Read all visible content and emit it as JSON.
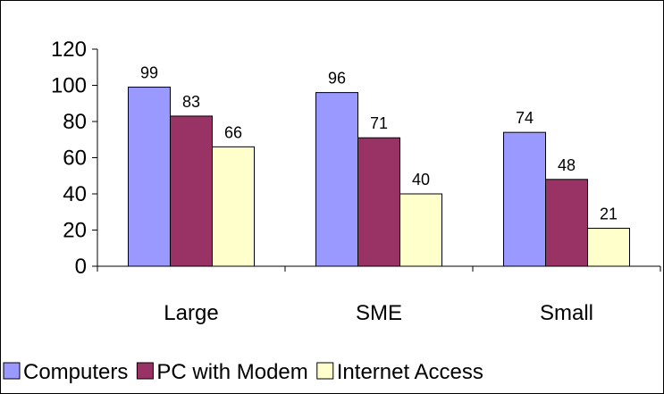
{
  "chart_data": {
    "type": "bar",
    "categories": [
      "Large",
      "SME",
      "Small"
    ],
    "series": [
      {
        "name": "Computers",
        "values": [
          99,
          96,
          74
        ],
        "color": "#9999FF"
      },
      {
        "name": "PC with Modem",
        "values": [
          83,
          71,
          48
        ],
        "color": "#993366"
      },
      {
        "name": "Internet Access",
        "values": [
          66,
          40,
          21
        ],
        "color": "#FFFFCC"
      }
    ],
    "ylim": [
      0,
      120
    ],
    "yticks": [
      0,
      20,
      40,
      60,
      80,
      100,
      120
    ],
    "ytick_labels": [
      "0",
      "20",
      "40",
      "60",
      "80",
      "100",
      "120"
    ],
    "grid": false,
    "legend_position": "bottom",
    "data_labels": true,
    "title": "",
    "xlabel": "",
    "ylabel": ""
  }
}
